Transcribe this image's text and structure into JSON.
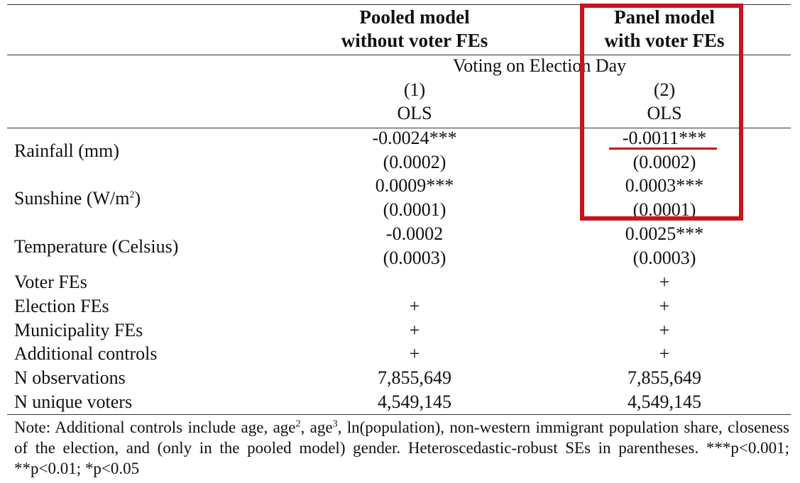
{
  "columns": [
    {
      "heading_line1": "Pooled model",
      "heading_line2": "without voter FEs",
      "number": "(1)",
      "method": "OLS"
    },
    {
      "heading_line1": "Panel model",
      "heading_line2": "with voter FEs",
      "number": "(2)",
      "method": "OLS"
    }
  ],
  "dependent_variable": "Voting on Election Day",
  "coefficient_rows": [
    {
      "label": "Rainfall (mm)",
      "coef": [
        "-0.0024***",
        "-0.0011***"
      ],
      "se": [
        "(0.0002)",
        "(0.0002)"
      ]
    },
    {
      "label": "Sunshine (W/m",
      "label_sup": "2",
      "label_tail": ")",
      "coef": [
        "0.0009***",
        "0.0003***"
      ],
      "se": [
        "(0.0001)",
        "(0.0001)"
      ]
    },
    {
      "label": "Temperature (Celsius)",
      "coef": [
        "-0.0002",
        "0.0025***"
      ],
      "se": [
        "(0.0003)",
        "(0.0003)"
      ]
    }
  ],
  "control_rows": [
    {
      "label": "Voter FEs",
      "values": [
        "",
        "+"
      ]
    },
    {
      "label": "Election FEs",
      "values": [
        "+",
        "+"
      ]
    },
    {
      "label": "Municipality FEs",
      "values": [
        "+",
        "+"
      ]
    },
    {
      "label": "Additional controls",
      "values": [
        "+",
        "+"
      ]
    },
    {
      "label": "N observations",
      "values": [
        "7,855,649",
        "7,855,649"
      ]
    },
    {
      "label": "N unique voters",
      "values": [
        "4,549,145",
        "4,549,145"
      ]
    }
  ],
  "note": {
    "part1": "Note: Additional controls include age, age",
    "sup1": "2",
    "part2": ", age",
    "sup2": "3",
    "part3": ", ln(population), non-western immigrant population share, closeness of the election, and (only in the pooled model) gender. Heteroscedastic-robust SEs in parentheses. ***p<0.001; **p<0.01; *p<0.05"
  },
  "highlight_color": "#c8141c"
}
